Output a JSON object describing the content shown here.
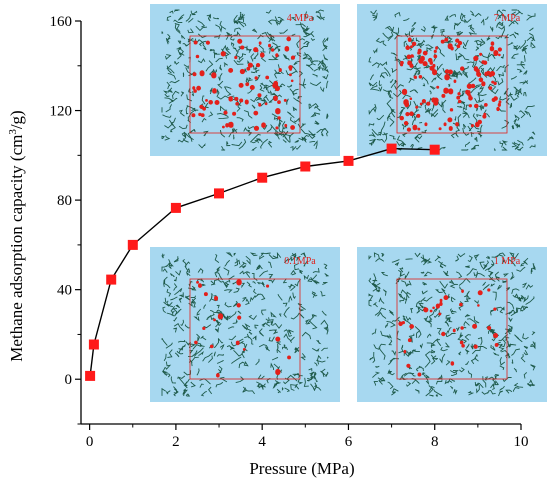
{
  "chart_data": {
    "type": "line",
    "title": "",
    "xlabel": "Pressure (MPa)",
    "ylabel_prefix": "Methane adsorption capacity (cm",
    "ylabel_sup": "3",
    "ylabel_suffix": "/g)",
    "xlim": [
      -0.2,
      10
    ],
    "ylim": [
      -20,
      160
    ],
    "x_ticks": [
      "0",
      "2",
      "4",
      "6",
      "8",
      "10"
    ],
    "y_ticks": [
      "0",
      "40",
      "80",
      "120",
      "160"
    ],
    "grid": false,
    "legend": "none",
    "series": [
      {
        "x": [
          0.01,
          0.1,
          0.5,
          1,
          2,
          3,
          4,
          5,
          6,
          7,
          8
        ],
        "y": [
          1.5,
          15.5,
          44.5,
          60,
          76.5,
          83,
          90,
          95,
          97.5,
          103,
          102.5
        ]
      }
    ],
    "marker_color": "#ff1a1a",
    "line_color": "#000000"
  },
  "insets": [
    {
      "label": "4 MPa",
      "pressure": 4
    },
    {
      "label": "7 MPa",
      "pressure": 7
    },
    {
      "label": "0.1MPa",
      "pressure": 0.1
    },
    {
      "label": "1 MPa",
      "pressure": 1
    }
  ],
  "colors": {
    "inset_background": "#a7d8f0",
    "molecule": "#1e5a4a",
    "methane": "#e3201b"
  }
}
